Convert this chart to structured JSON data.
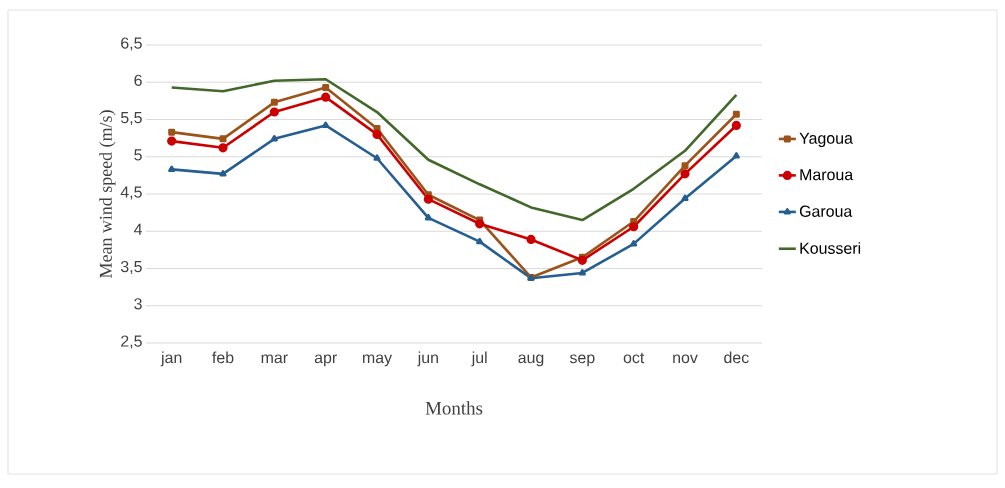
{
  "chart_data": {
    "type": "line",
    "xlabel": "Months",
    "ylabel": "Mean  wind speed (m/s)",
    "categories": [
      "jan",
      "feb",
      "mar",
      "apr",
      "may",
      "jun",
      "jul",
      "aug",
      "sep",
      "oct",
      "nov",
      "dec"
    ],
    "series": [
      {
        "name": "Yagoua",
        "color": "#9c5319",
        "marker": "square",
        "values": [
          5.33,
          5.24,
          5.73,
          5.93,
          5.38,
          4.49,
          4.15,
          3.38,
          3.65,
          4.13,
          4.88,
          5.57
        ]
      },
      {
        "name": "Maroua",
        "color": "#cc0000",
        "marker": "circle",
        "values": [
          5.21,
          5.12,
          5.6,
          5.8,
          5.3,
          4.43,
          4.1,
          3.89,
          3.61,
          4.06,
          4.77,
          5.42
        ]
      },
      {
        "name": "Garoua",
        "color": "#255e91",
        "marker": "triangle",
        "values": [
          4.83,
          4.77,
          5.24,
          5.42,
          4.98,
          4.18,
          3.86,
          3.37,
          3.44,
          3.83,
          4.44,
          5.01
        ]
      },
      {
        "name": "Kousseri",
        "color": "#43682b",
        "marker": "none",
        "values": [
          5.93,
          5.88,
          6.02,
          6.04,
          5.6,
          4.96,
          4.63,
          4.32,
          4.15,
          4.57,
          5.08,
          5.83
        ]
      }
    ],
    "ylim": [
      2.5,
      6.5
    ],
    "yticks": [
      {
        "value": 2.5,
        "label": "2,5"
      },
      3,
      {
        "value": 3.5,
        "label": "3,5"
      },
      4,
      {
        "value": 4.5,
        "label": "4,5"
      },
      5,
      {
        "value": 5.5,
        "label": "5,5"
      },
      6,
      {
        "value": 6.5,
        "label": "6,5"
      }
    ],
    "grid": "y",
    "legend": "right",
    "line_style": "solid"
  }
}
